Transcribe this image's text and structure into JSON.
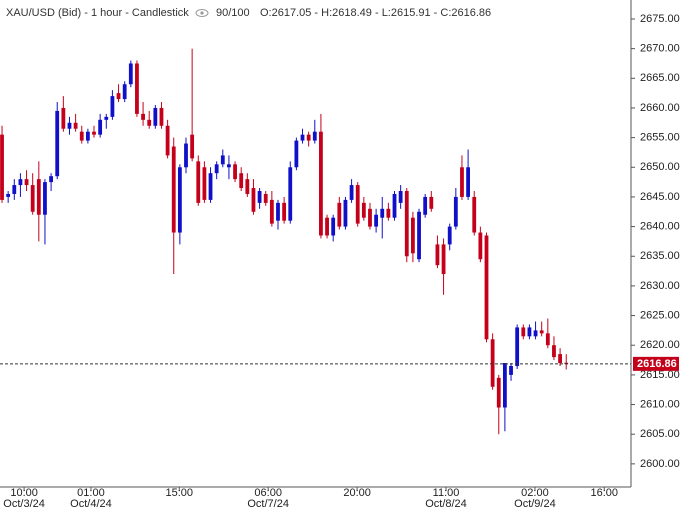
{
  "chart_data": {
    "type": "candlestick",
    "title": "XAU/USD (Bid) - 1 hour - Candlestick",
    "zoom": "90/100",
    "info": "O:2617.05 - H:2618.49 - L:2615.91 - C:2616.86",
    "up_color": "#1010c8",
    "down_color": "#c4001a",
    "last_price": 2616.86,
    "last_price_label": "2616.86",
    "ylim": [
      2596.1,
      2678.2
    ],
    "yticks": [
      {
        "value": 2600,
        "label": "2600.00"
      },
      {
        "value": 2605,
        "label": "2605.00"
      },
      {
        "value": 2610,
        "label": "2610.00"
      },
      {
        "value": 2615,
        "label": "2615.00"
      },
      {
        "value": 2620,
        "label": "2620.00"
      },
      {
        "value": 2625,
        "label": "2625.00"
      },
      {
        "value": 2630,
        "label": "2630.00"
      },
      {
        "value": 2635,
        "label": "2635.00"
      },
      {
        "value": 2640,
        "label": "2640.00"
      },
      {
        "value": 2645,
        "label": "2645.00"
      },
      {
        "value": 2650,
        "label": "2650.00"
      },
      {
        "value": 2655,
        "label": "2655.00"
      },
      {
        "value": 2660,
        "label": "2660.00"
      },
      {
        "value": 2665,
        "label": "2665.00"
      },
      {
        "value": 2670,
        "label": "2670.00"
      },
      {
        "value": 2675,
        "label": "2675.00"
      }
    ],
    "xlim": [
      -0.33,
      102.4
    ],
    "xticks": [
      {
        "value": 3.6,
        "label": "10:00",
        "date": "Oct/3/24"
      },
      {
        "value": 14.5,
        "label": "01:00",
        "date": "Oct/4/24"
      },
      {
        "value": 28.9,
        "label": "15:00"
      },
      {
        "value": 43.4,
        "label": "06:00",
        "date": "Oct/7/24"
      },
      {
        "value": 57.9,
        "label": "20:00"
      },
      {
        "value": 72.4,
        "label": "11:00",
        "date": "Oct/8/24"
      },
      {
        "value": 86.9,
        "label": "02:00",
        "date": "Oct/9/24"
      },
      {
        "value": 98.2,
        "label": "16:00"
      }
    ],
    "open": [
      2655.5,
      2645,
      2645.5,
      2647,
      2648,
      2647,
      2648,
      2642,
      2647.5,
      2648.5,
      2660,
      2656.5,
      2657.5,
      2656,
      2654.5,
      2656,
      2655.5,
      2658,
      2658.5,
      2662.5,
      2661.5,
      2664,
      2667.5,
      2659,
      2658,
      2657,
      2660,
      2657,
      2653.5,
      2639,
      2650,
      2655.5,
      2651,
      2650,
      2644.5,
      2649,
      2650.5,
      2650,
      2650.5,
      2649,
      2648,
      2646.5,
      2644,
      2645.5,
      2644.5,
      2641,
      2644,
      2641,
      2650,
      2654.5,
      2655.5,
      2654.5,
      2656,
      2641.5,
      2638.5,
      2644,
      2640,
      2644.5,
      2647,
      2644,
      2643,
      2640,
      2641.5,
      2643,
      2641.5,
      2644,
      2646,
      2641.5,
      2634.5,
      2642,
      2645,
      2637,
      2637,
      2637,
      2640,
      2650,
      2645,
      2645,
      2639,
      2638.5,
      2621,
      2614.5,
      2609.5,
      2615,
      2616.5,
      2623,
      2621.5,
      2621.5,
      2622.5,
      2622,
      2620,
      2618.5,
      2617.05
    ],
    "high": [
      2657,
      2646,
      2648,
      2649,
      2649.5,
      2649,
      2651,
      2648,
      2649,
      2661,
      2662,
      2658.5,
      2659,
      2657,
      2656.5,
      2657,
      2659,
      2659,
      2663,
      2664,
      2664.5,
      2668,
      2668,
      2661,
      2659.5,
      2660.5,
      2661,
      2658,
      2655,
      2650.5,
      2655,
      2670,
      2652,
      2651,
      2650,
      2651,
      2653,
      2652,
      2651,
      2650,
      2649,
      2648,
      2646.5,
      2646,
      2646,
      2644.5,
      2645,
      2651,
      2655,
      2656.5,
      2656,
      2658,
      2659,
      2642,
      2642,
      2645,
      2645,
      2648,
      2647.5,
      2645,
      2644,
      2643,
      2645,
      2644,
      2646,
      2647,
      2646.5,
      2642.5,
      2643,
      2645.5,
      2646,
      2638.5,
      2638,
      2640.5,
      2646.5,
      2652,
      2653,
      2646,
      2640,
      2639,
      2622,
      2615,
      2617,
      2617,
      2623.5,
      2623.5,
      2623.5,
      2624,
      2624,
      2624.5,
      2621.5,
      2619.5,
      2618.49
    ],
    "low": [
      2644,
      2644,
      2644.5,
      2645,
      2646,
      2642,
      2637.5,
      2637,
      2646,
      2648,
      2656,
      2655.5,
      2656,
      2654,
      2654,
      2655,
      2655,
      2656.5,
      2658,
      2661,
      2661,
      2663.5,
      2658.5,
      2657,
      2656.5,
      2656.5,
      2656.5,
      2651.5,
      2632,
      2637,
      2649,
      2651,
      2643.5,
      2644,
      2644,
      2648,
      2650,
      2648,
      2647.5,
      2646,
      2645,
      2642,
      2643,
      2643.5,
      2640,
      2639.5,
      2640.5,
      2640.5,
      2649.5,
      2654,
      2653.5,
      2654,
      2638,
      2638,
      2637.5,
      2639.5,
      2639.5,
      2644,
      2640,
      2641,
      2639.5,
      2639,
      2638,
      2641,
      2641,
      2643,
      2634,
      2634,
      2634,
      2641.5,
      2642.5,
      2633,
      2628.5,
      2636,
      2639.5,
      2644.5,
      2644.5,
      2638.5,
      2634,
      2620.5,
      2612.5,
      2605,
      2605.5,
      2614,
      2616,
      2621,
      2621,
      2621,
      2621.5,
      2619.5,
      2617.5,
      2616.5,
      2615.91
    ],
    "close": [
      2644.5,
      2645.5,
      2647,
      2648,
      2647,
      2642.5,
      2642,
      2647.5,
      2648.5,
      2659.5,
      2656.5,
      2657.5,
      2656.5,
      2654.5,
      2656,
      2655.5,
      2658,
      2658.5,
      2662,
      2661.5,
      2664,
      2667.5,
      2659,
      2658,
      2657,
      2660,
      2657,
      2652,
      2639,
      2650,
      2654,
      2651.5,
      2644,
      2644.5,
      2649,
      2650.5,
      2652,
      2650.5,
      2648,
      2646.5,
      2645.5,
      2642.5,
      2646,
      2644,
      2640.5,
      2644,
      2641,
      2650,
      2654.5,
      2655.5,
      2654.5,
      2656,
      2638.5,
      2638.5,
      2641.5,
      2640,
      2644.5,
      2647,
      2640.5,
      2641.5,
      2640,
      2642,
      2643,
      2641.5,
      2645.5,
      2646,
      2635,
      2635.5,
      2642.5,
      2645,
      2643,
      2633.5,
      2632,
      2640,
      2645,
      2645,
      2650,
      2639,
      2634.5,
      2621,
      2613,
      2609.5,
      2617,
      2616.5,
      2623,
      2621.5,
      2623,
      2622.5,
      2622,
      2620,
      2618,
      2617,
      2616.86
    ]
  }
}
